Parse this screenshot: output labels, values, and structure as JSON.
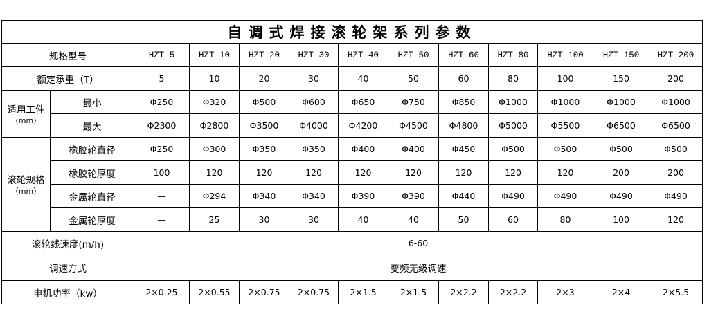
{
  "title": "自调式焊接滚轮架系列参数",
  "header": {
    "label": "规格型号",
    "models": [
      "HZT-5",
      "HZT-10",
      "HZT-20",
      "HZT-30",
      "HZT-40",
      "HZT-50",
      "HZT-60",
      "HZT-80",
      "HZT-100",
      "HZT-150",
      "HZT-200"
    ]
  },
  "load": {
    "label": "额定承重（T）",
    "values": [
      "5",
      "10",
      "20",
      "30",
      "40",
      "50",
      "60",
      "80",
      "100",
      "150",
      "200"
    ]
  },
  "workpiece": {
    "label": "适用工件",
    "unit": "(mm)",
    "min": {
      "label": "最小",
      "values": [
        "Φ250",
        "Φ320",
        "Φ500",
        "Φ600",
        "Φ650",
        "Φ750",
        "Φ850",
        "Φ1000",
        "Φ1000",
        "Φ1000",
        "Φ1000"
      ]
    },
    "max": {
      "label": "最大",
      "values": [
        "Φ2300",
        "Φ2800",
        "Φ3500",
        "Φ4000",
        "Φ4200",
        "Φ4500",
        "Φ4800",
        "Φ5000",
        "Φ5500",
        "Φ6500",
        "Φ6500"
      ]
    }
  },
  "roller": {
    "label": "滚轮规格",
    "unit": "（mm）",
    "rows": [
      {
        "label": "橡胶轮直径",
        "values": [
          "Φ250",
          "Φ300",
          "Φ350",
          "Φ350",
          "Φ400",
          "Φ400",
          "Φ450",
          "Φ500",
          "Φ500",
          "Φ500",
          "Φ500"
        ]
      },
      {
        "label": "橡胶轮厚度",
        "values": [
          "100",
          "120",
          "120",
          "120",
          "120",
          "120",
          "120",
          "120",
          "120",
          "200",
          "200"
        ]
      },
      {
        "label": "金属轮直径",
        "values": [
          "—",
          "Φ294",
          "Φ340",
          "Φ340",
          "Φ390",
          "Φ390",
          "Φ440",
          "Φ490",
          "Φ490",
          "Φ490",
          "Φ490"
        ]
      },
      {
        "label": "金属轮厚度",
        "values": [
          "—",
          "25",
          "30",
          "30",
          "40",
          "40",
          "50",
          "60",
          "80",
          "100",
          "120"
        ]
      }
    ]
  },
  "speed": {
    "label": "滚轮线速度(m/h)",
    "value": "6-60"
  },
  "regulation": {
    "label": "调速方式",
    "value": "变频无级调速"
  },
  "power": {
    "label": "电机功率（kw）",
    "values": [
      "2×0.25",
      "2×0.55",
      "2×0.75",
      "2×0.75",
      "2×1.5",
      "2×1.5",
      "2×2.2",
      "2×2.2",
      "2×3",
      "2×4",
      "2×5.5"
    ]
  }
}
